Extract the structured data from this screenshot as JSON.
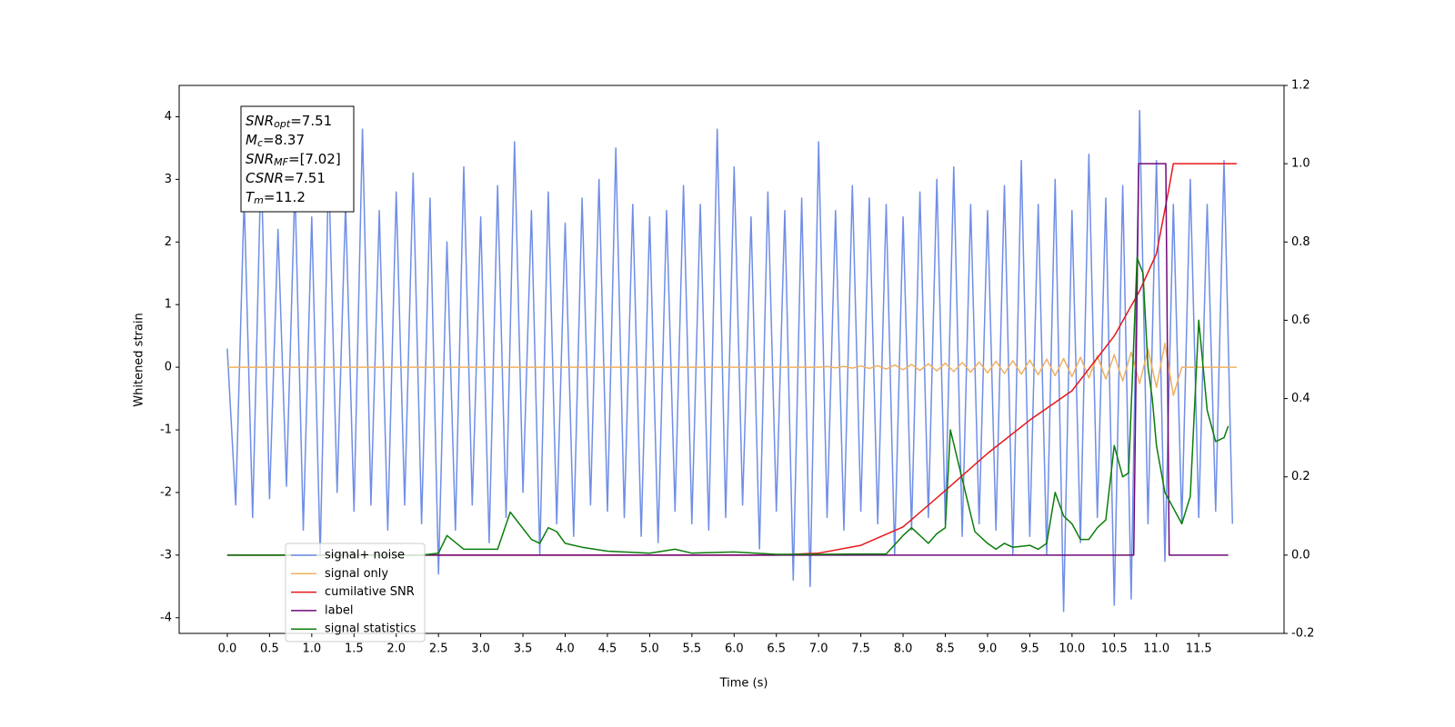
{
  "chart_data": {
    "type": "line",
    "xlabel": "Time (s)",
    "ylabel": "Whitened strain",
    "xlim": [
      -0.57,
      12.51
    ],
    "ylim": [
      -4.25,
      4.5
    ],
    "y2lim": [
      -0.2,
      1.2
    ],
    "xticks": [
      {
        "value": 0,
        "label": "0.0"
      },
      0.5,
      {
        "value": 1,
        "label": "1.0"
      },
      1.5,
      {
        "value": 2,
        "label": "2.0"
      },
      2.5,
      {
        "value": 3,
        "label": "3.0"
      },
      3.5,
      {
        "value": 4,
        "label": "4.0"
      },
      4.5,
      {
        "value": 5,
        "label": "5.0"
      },
      5.5,
      {
        "value": 6,
        "label": "6.0"
      },
      6.5,
      {
        "value": 7,
        "label": "7.0"
      },
      7.5,
      {
        "value": 8,
        "label": "8.0"
      },
      8.5,
      {
        "value": 9,
        "label": "9.0"
      },
      9.5,
      {
        "value": 10,
        "label": "10.0"
      },
      10.5,
      {
        "value": 11,
        "label": "11.0"
      },
      11.5
    ],
    "yticks": [
      -4,
      -3,
      -2,
      -1,
      0,
      1,
      2,
      3,
      4
    ],
    "y2ticks": [
      -0.2,
      {
        "value": 0,
        "label": "0.0"
      },
      0.2,
      0.4,
      0.6,
      0.8,
      {
        "value": 1,
        "label": "1.0"
      },
      1.2
    ],
    "annotation": [
      {
        "text": "SNR",
        "sub": "opt",
        "rest": "=7.51"
      },
      {
        "text": "M",
        "sub": "c",
        "rest": "=8.37"
      },
      {
        "text": "SNR",
        "sub": "MF",
        "rest": "=[7.02]"
      },
      {
        "text": "CSNR",
        "rest": "=7.51"
      },
      {
        "text": "T",
        "sub": "m",
        "rest": "=11.2"
      }
    ],
    "series": [
      {
        "name": "signal+ noise",
        "color": "#6f8ee6",
        "x": [
          0.0,
          0.1,
          0.2,
          0.3,
          0.4,
          0.5,
          0.6,
          0.7,
          0.8,
          0.9,
          1.0,
          1.1,
          1.2,
          1.3,
          1.4,
          1.5,
          1.6,
          1.7,
          1.8,
          1.9,
          2.0,
          2.1,
          2.2,
          2.3,
          2.4,
          2.5,
          2.6,
          2.7,
          2.8,
          2.9,
          3.0,
          3.1,
          3.2,
          3.3,
          3.4,
          3.5,
          3.6,
          3.7,
          3.8,
          3.9,
          4.0,
          4.1,
          4.2,
          4.3,
          4.4,
          4.5,
          4.6,
          4.7,
          4.8,
          4.9,
          5.0,
          5.1,
          5.2,
          5.3,
          5.4,
          5.5,
          5.6,
          5.7,
          5.8,
          5.9,
          6.0,
          6.1,
          6.2,
          6.3,
          6.4,
          6.5,
          6.6,
          6.7,
          6.8,
          6.9,
          7.0,
          7.1,
          7.2,
          7.3,
          7.4,
          7.5,
          7.6,
          7.7,
          7.8,
          7.9,
          8.0,
          8.1,
          8.2,
          8.3,
          8.4,
          8.5,
          8.6,
          8.7,
          8.8,
          8.9,
          9.0,
          9.1,
          9.2,
          9.3,
          9.4,
          9.5,
          9.6,
          9.7,
          9.8,
          9.9,
          10.0,
          10.1,
          10.2,
          10.3,
          10.4,
          10.5,
          10.6,
          10.7,
          10.8,
          10.9,
          11.0,
          11.1,
          11.2,
          11.3,
          11.4,
          11.5,
          11.6,
          11.7,
          11.8,
          11.9
        ],
        "values": [
          0.3,
          -2.2,
          2.7,
          -2.4,
          3.3,
          -2.1,
          2.2,
          -1.9,
          2.9,
          -2.6,
          2.4,
          -3.0,
          3.2,
          -2.0,
          2.6,
          -2.3,
          3.8,
          -2.2,
          2.5,
          -2.6,
          2.8,
          -2.2,
          3.1,
          -2.5,
          2.7,
          -3.3,
          2.0,
          -2.6,
          3.2,
          -2.2,
          2.4,
          -2.8,
          2.9,
          -2.4,
          3.6,
          -2.0,
          2.5,
          -3.0,
          2.8,
          -2.5,
          2.3,
          -2.7,
          2.7,
          -2.2,
          3.0,
          -2.3,
          3.5,
          -2.4,
          2.6,
          -2.7,
          2.4,
          -2.8,
          2.5,
          -2.3,
          2.9,
          -2.5,
          2.6,
          -2.6,
          3.8,
          -2.4,
          3.2,
          -2.2,
          2.4,
          -2.9,
          2.8,
          -2.3,
          2.5,
          -3.4,
          2.7,
          -3.5,
          3.6,
          -2.4,
          2.5,
          -2.6,
          2.9,
          -2.3,
          2.7,
          -2.5,
          2.6,
          -3.0,
          2.4,
          -2.6,
          2.8,
          -2.4,
          3.0,
          -2.5,
          3.2,
          -2.7,
          2.6,
          -2.5,
          2.5,
          -2.6,
          2.9,
          -3.0,
          3.3,
          -2.7,
          2.6,
          -3.0,
          3.0,
          -3.9,
          2.5,
          -2.8,
          3.4,
          -2.4,
          2.7,
          -3.8,
          2.9,
          -3.7,
          4.1,
          -2.5,
          3.3,
          -3.1,
          2.6,
          -2.5,
          3.0,
          -2.4,
          2.6,
          -2.3,
          3.3,
          -2.5
        ]
      },
      {
        "name": "signal only",
        "color": "#f0b060",
        "x": [
          0.0,
          7.0,
          7.1,
          7.2,
          7.3,
          7.4,
          7.5,
          7.6,
          7.7,
          7.8,
          7.9,
          8.0,
          8.1,
          8.2,
          8.3,
          8.4,
          8.5,
          8.6,
          8.7,
          8.8,
          8.9,
          9.0,
          9.1,
          9.2,
          9.3,
          9.4,
          9.5,
          9.6,
          9.7,
          9.8,
          9.9,
          10.0,
          10.1,
          10.2,
          10.3,
          10.4,
          10.5,
          10.6,
          10.7,
          10.8,
          10.9,
          11.0,
          11.1,
          11.2,
          11.3,
          11.95
        ],
        "values": [
          0,
          0,
          0.01,
          -0.01,
          0.015,
          -0.015,
          0.02,
          -0.02,
          0.025,
          -0.03,
          0.035,
          -0.04,
          0.045,
          -0.05,
          0.055,
          -0.06,
          0.065,
          -0.07,
          0.075,
          -0.08,
          0.085,
          -0.09,
          0.095,
          -0.1,
          0.105,
          -0.11,
          0.115,
          -0.12,
          0.13,
          -0.135,
          0.14,
          -0.15,
          0.16,
          -0.17,
          0.18,
          -0.19,
          0.2,
          -0.22,
          0.24,
          -0.26,
          0.29,
          -0.32,
          0.38,
          -0.45,
          0,
          0
        ]
      },
      {
        "name": "cumilative SNR",
        "color": "#e8161b",
        "axis": "y2",
        "x": [
          0.0,
          6.5,
          7.0,
          7.5,
          8.0,
          8.5,
          9.0,
          9.5,
          10.0,
          10.5,
          10.8,
          11.0,
          11.15,
          11.2,
          11.95
        ],
        "values": [
          0,
          0,
          0.005,
          0.025,
          0.072,
          0.165,
          0.26,
          0.345,
          0.42,
          0.56,
          0.675,
          0.77,
          0.94,
          1.0,
          1.0
        ]
      },
      {
        "name": "label",
        "color": "#6e0a78",
        "axis": "y2",
        "x": [
          0.0,
          10.73,
          10.79,
          11.11,
          11.15,
          11.85
        ],
        "values": [
          0,
          0,
          1,
          1,
          0,
          0
        ]
      },
      {
        "name": "signal statistics",
        "color": "#0a7d0a",
        "axis": "y2",
        "x": [
          0.0,
          2.3,
          2.5,
          2.6,
          2.8,
          3.0,
          3.2,
          3.35,
          3.6,
          3.7,
          3.8,
          3.9,
          4.0,
          4.2,
          4.5,
          5.0,
          5.3,
          5.5,
          6.0,
          6.5,
          7.0,
          7.5,
          7.8,
          8.0,
          8.1,
          8.3,
          8.4,
          8.5,
          8.56,
          8.75,
          8.85,
          9.0,
          9.1,
          9.2,
          9.3,
          9.5,
          9.6,
          9.7,
          9.8,
          9.9,
          10.0,
          10.1,
          10.2,
          10.3,
          10.4,
          10.5,
          10.6,
          10.67,
          10.77,
          10.84,
          10.9,
          10.95,
          11.0,
          11.1,
          11.2,
          11.3,
          11.4,
          11.5,
          11.6,
          11.7,
          11.8,
          11.85
        ],
        "values": [
          0,
          0,
          0.005,
          0.05,
          0.015,
          0.015,
          0.015,
          0.11,
          0.04,
          0.03,
          0.07,
          0.06,
          0.03,
          0.02,
          0.01,
          0.005,
          0.015,
          0.005,
          0.008,
          0.002,
          0.002,
          0.003,
          0.003,
          0.05,
          0.07,
          0.03,
          0.055,
          0.07,
          0.32,
          0.15,
          0.06,
          0.03,
          0.015,
          0.03,
          0.02,
          0.025,
          0.015,
          0.03,
          0.16,
          0.1,
          0.08,
          0.04,
          0.04,
          0.07,
          0.09,
          0.28,
          0.2,
          0.21,
          0.76,
          0.72,
          0.48,
          0.4,
          0.28,
          0.16,
          0.12,
          0.08,
          0.15,
          0.6,
          0.37,
          0.29,
          0.3,
          0.33
        ]
      }
    ]
  }
}
